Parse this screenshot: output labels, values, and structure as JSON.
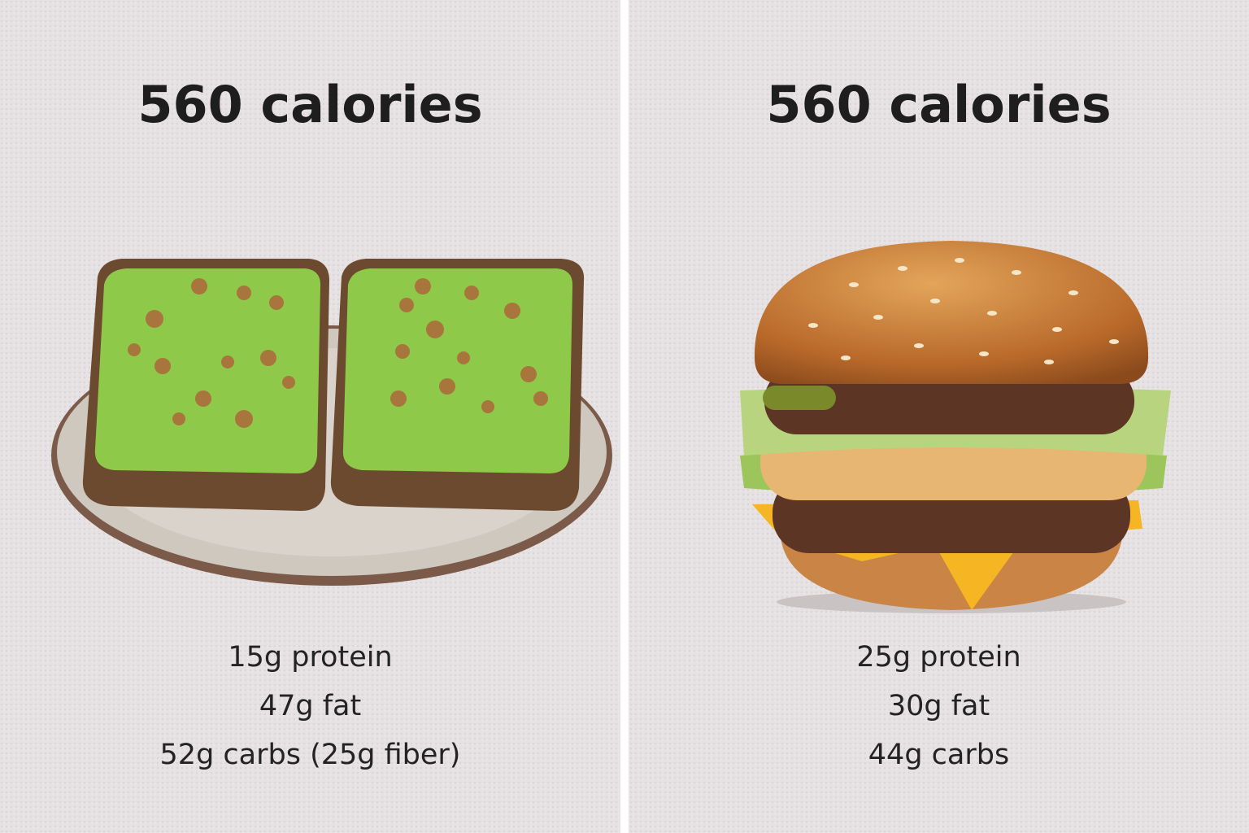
{
  "panels": [
    {
      "title": "560 calories",
      "lines": [
        "15g protein",
        "47g fat",
        "52g carbs (25g fiber)"
      ]
    },
    {
      "title": "560 calories",
      "lines": [
        "25g protein",
        "30g fat",
        "44g carbs"
      ]
    }
  ]
}
